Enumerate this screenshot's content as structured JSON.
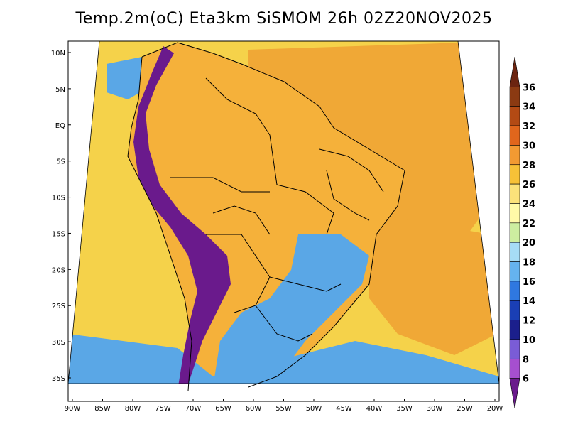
{
  "title": "Temp.2m(oC) Eta3km SiSMOM 26h 02Z20NOV2025",
  "map": {
    "lon_labels": [
      "90W",
      "85W",
      "80W",
      "75W",
      "70W",
      "65W",
      "60W",
      "55W",
      "50W",
      "45W",
      "40W",
      "35W",
      "30W",
      "25W",
      "20W"
    ],
    "lat_labels": [
      "10N",
      "5N",
      "EQ",
      "5S",
      "10S",
      "15S",
      "20S",
      "25S",
      "30S",
      "35S"
    ],
    "ocean_color": "#f5d24a",
    "land_warm_color": "#f5b13a",
    "atlantic_warm_color": "#f0a836",
    "andes_color": "#6a1a8c",
    "south_cool_color": "#5aa7e6",
    "border_color": "#000000"
  },
  "colorbar": {
    "labels": [
      "36",
      "34",
      "32",
      "30",
      "28",
      "26",
      "24",
      "22",
      "20",
      "18",
      "16",
      "14",
      "12",
      "10",
      "8",
      "6"
    ],
    "colors": [
      "#6b2410",
      "#8b3a12",
      "#b34a14",
      "#e0661c",
      "#f29a32",
      "#f7c137",
      "#fbe27a",
      "#fffaa8",
      "#cdeea0",
      "#a6dcf5",
      "#65b3ef",
      "#2f78e0",
      "#1a3fb5",
      "#1b1f8c",
      "#7a5cd6",
      "#a64fcf",
      "#6a1a8c"
    ]
  }
}
